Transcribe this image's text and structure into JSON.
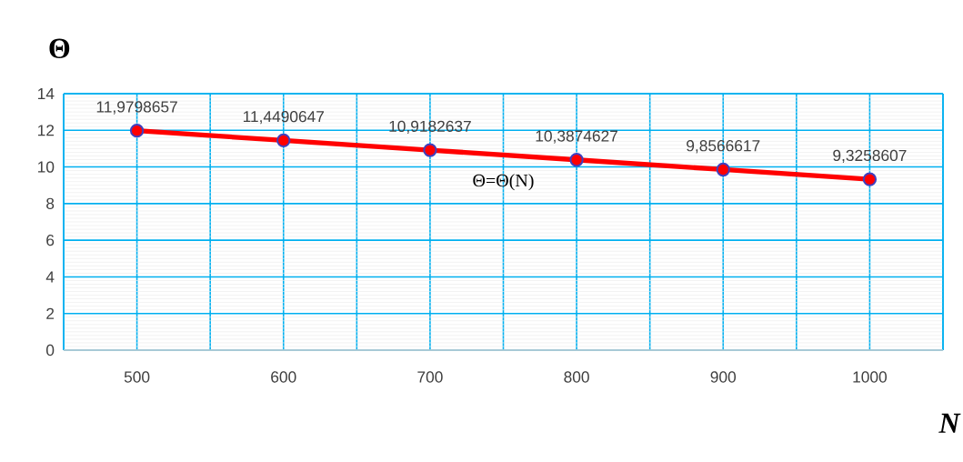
{
  "chart_data": {
    "type": "line",
    "ylabel": "Θ",
    "xlabel": "N",
    "annotations": [
      "Θ=Θ(N)"
    ],
    "x": [
      500,
      600,
      700,
      800,
      900,
      1000
    ],
    "series": [
      {
        "color": "#ff0000",
        "values": [
          11.9798657,
          11.4490647,
          10.9182637,
          10.3874627,
          9.8566617,
          9.3258607
        ],
        "value_labels": [
          "11,9798657",
          "11,4490647",
          "10,9182637",
          "10,3874627",
          "9,8566617",
          "9,3258607"
        ]
      }
    ],
    "xlim": [
      450,
      1050
    ],
    "xticks": [
      {
        "value": 450,
        "label": null
      },
      500,
      {
        "value": 550,
        "label": null
      },
      600,
      {
        "value": 650,
        "label": null
      },
      700,
      {
        "value": 750,
        "label": null
      },
      800,
      {
        "value": 850,
        "label": null
      },
      900,
      {
        "value": 950,
        "label": null
      },
      1000,
      {
        "value": 1050,
        "label": null
      }
    ],
    "ylim": [
      0,
      14
    ],
    "yticks": [
      0,
      2,
      4,
      6,
      8,
      10,
      12,
      14
    ],
    "grid": true,
    "marker": "circle",
    "line_style": "solid",
    "legend": false
  }
}
